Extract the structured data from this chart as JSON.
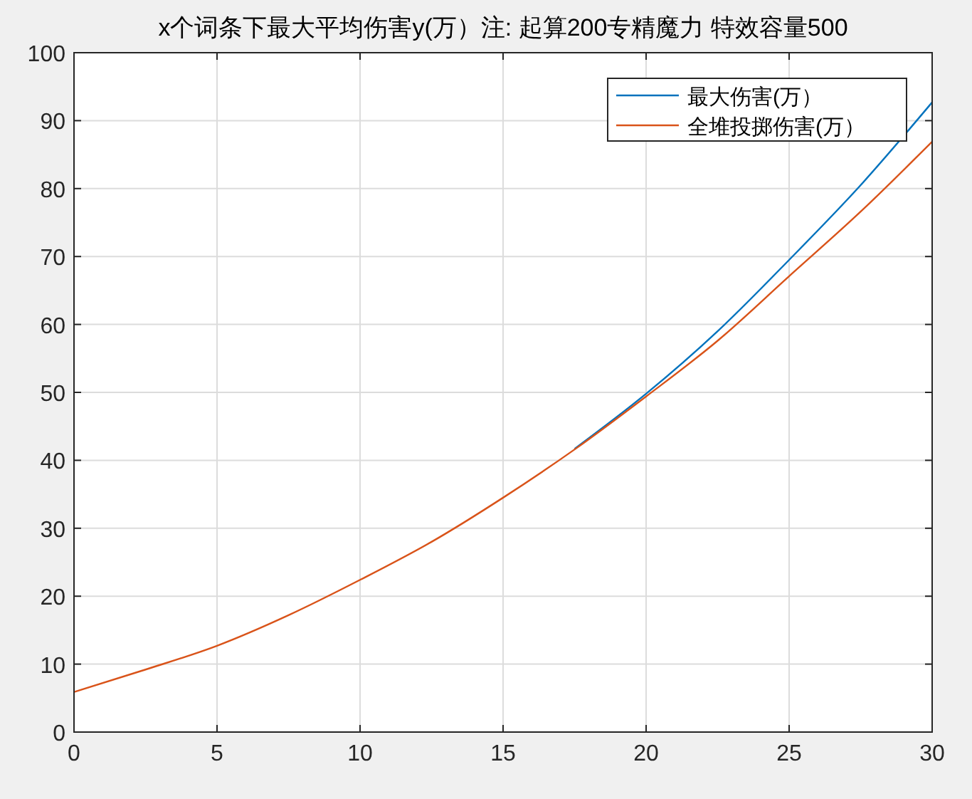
{
  "chart_data": {
    "type": "line",
    "title": "x个词条下最大平均伤害y(万）注: 起算200专精魔力 特效容量500",
    "x": [
      0,
      2.5,
      5,
      7.5,
      10,
      12.5,
      15,
      17.5,
      20,
      22.5,
      25,
      27.5,
      30
    ],
    "series": [
      {
        "name": "最大伤害(万）",
        "color": "#0072bd",
        "values": [
          null,
          null,
          null,
          null,
          null,
          null,
          null,
          41.7,
          49.8,
          59,
          69.5,
          80.5,
          92.7
        ]
      },
      {
        "name": "全堆投掷伤害(万）",
        "color": "#d95319",
        "values": [
          5.9,
          9.2,
          12.7,
          17.2,
          22.4,
          28,
          34.5,
          41.6,
          49.4,
          57.6,
          67.1,
          76.6,
          86.9
        ]
      }
    ],
    "xlim": [
      0,
      30
    ],
    "xticks": [
      0,
      5,
      10,
      15,
      20,
      25,
      30
    ],
    "ylim": [
      0,
      100
    ],
    "yticks": [
      0,
      10,
      20,
      30,
      40,
      50,
      60,
      70,
      80,
      90,
      100
    ],
    "grid": true,
    "legend": "top right",
    "marker": "none",
    "line_style": "solid"
  }
}
